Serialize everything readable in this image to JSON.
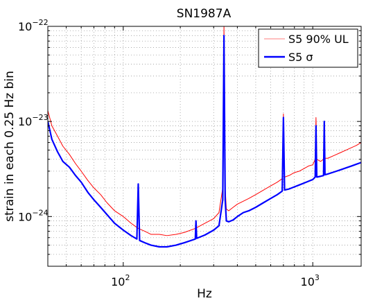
{
  "chart_data": {
    "type": "line",
    "title": "SN1987A",
    "xlabel": "Hz",
    "ylabel": "strain in each 0.25 Hz bin",
    "x_scale": "log",
    "y_scale": "log",
    "xlim": [
      40,
      1800
    ],
    "ylim": [
      3e-25,
      1e-22
    ],
    "grid": true,
    "legend_position": "top-right",
    "x_ticks": [
      {
        "value": 100,
        "base": "10",
        "exp": "2"
      },
      {
        "value": 1000,
        "base": "10",
        "exp": "3"
      }
    ],
    "y_ticks": [
      {
        "value": 1e-24,
        "base": "10",
        "exp": "−24"
      },
      {
        "value": 1e-23,
        "base": "10",
        "exp": "−23"
      },
      {
        "value": 1e-22,
        "base": "10",
        "exp": "−22"
      }
    ],
    "series": [
      {
        "name": "S5 90% UL",
        "color": "#ff0000",
        "legend_color": "#ff9999",
        "x": [
          40,
          42,
          45,
          48,
          52,
          56,
          60,
          65,
          70,
          76,
          82,
          90,
          100,
          110,
          120,
          130,
          140,
          155,
          170,
          190,
          210,
          240,
          270,
          300,
          320,
          335,
          340,
          345,
          350,
          360,
          380,
          400,
          430,
          460,
          500,
          550,
          600,
          650,
          690,
          700,
          710,
          750,
          800,
          850,
          900,
          950,
          1000,
          1030,
          1040,
          1050,
          1100,
          1140,
          1150,
          1160,
          1200,
          1300,
          1400,
          1500,
          1600,
          1700,
          1800
        ],
        "y": [
          1.3e-23,
          9e-24,
          7e-24,
          5.5e-24,
          4.5e-24,
          3.6e-24,
          3e-24,
          2.4e-24,
          2e-24,
          1.7e-24,
          1.4e-24,
          1.15e-24,
          1e-24,
          8.5e-25,
          7.5e-25,
          7e-25,
          6.5e-25,
          6.5e-25,
          6.3e-25,
          6.5e-25,
          6.8e-25,
          7.5e-25,
          8.5e-25,
          9.5e-25,
          1.1e-24,
          2e-24,
          1e-22,
          2e-24,
          1.2e-24,
          1.15e-24,
          1.25e-24,
          1.35e-24,
          1.45e-24,
          1.55e-24,
          1.7e-24,
          1.9e-24,
          2.1e-24,
          2.3e-24,
          2.5e-24,
          1.2e-23,
          2.6e-24,
          2.7e-24,
          2.9e-24,
          3e-24,
          3.2e-24,
          3.4e-24,
          3.5e-24,
          4e-24,
          1.1e-23,
          4e-24,
          3.8e-24,
          4e-24,
          9e-24,
          4.1e-24,
          4.1e-24,
          4.4e-24,
          4.7e-24,
          5e-24,
          5.3e-24,
          5.6e-24,
          6e-24
        ]
      },
      {
        "name": "S5 σ",
        "color": "#0000ff",
        "x": [
          40,
          42,
          45,
          48,
          52,
          56,
          60,
          65,
          70,
          76,
          82,
          90,
          100,
          110,
          118,
          120,
          122,
          130,
          140,
          155,
          170,
          190,
          210,
          240,
          242,
          244,
          270,
          300,
          320,
          335,
          340,
          345,
          350,
          360,
          380,
          400,
          430,
          460,
          500,
          550,
          600,
          650,
          690,
          700,
          710,
          750,
          800,
          850,
          900,
          950,
          1000,
          1030,
          1040,
          1050,
          1100,
          1140,
          1150,
          1160,
          1200,
          1300,
          1400,
          1500,
          1600,
          1700,
          1800
        ],
        "y": [
          1e-23,
          6.5e-24,
          4.8e-24,
          3.8e-24,
          3.3e-24,
          2.7e-24,
          2.3e-24,
          1.8e-24,
          1.5e-24,
          1.25e-24,
          1.05e-24,
          8.5e-25,
          7.2e-25,
          6.3e-25,
          5.8e-25,
          2.2e-24,
          5.6e-25,
          5.3e-25,
          5e-25,
          4.8e-25,
          4.8e-25,
          5e-25,
          5.3e-25,
          5.8e-25,
          9e-25,
          5.9e-25,
          6.4e-25,
          7.2e-25,
          8e-25,
          1.5e-24,
          8e-23,
          1.5e-24,
          9e-25,
          8.8e-25,
          9.2e-25,
          1e-24,
          1.1e-24,
          1.15e-24,
          1.25e-24,
          1.4e-24,
          1.55e-24,
          1.7e-24,
          1.85e-24,
          1.1e-23,
          1.9e-24,
          1.95e-24,
          2.05e-24,
          2.15e-24,
          2.25e-24,
          2.35e-24,
          2.45e-24,
          2.6e-24,
          9e-24,
          2.6e-24,
          2.65e-24,
          2.7e-24,
          1e-23,
          2.75e-24,
          2.8e-24,
          2.95e-24,
          3.1e-24,
          3.25e-24,
          3.4e-24,
          3.55e-24,
          3.7e-24
        ]
      }
    ]
  }
}
